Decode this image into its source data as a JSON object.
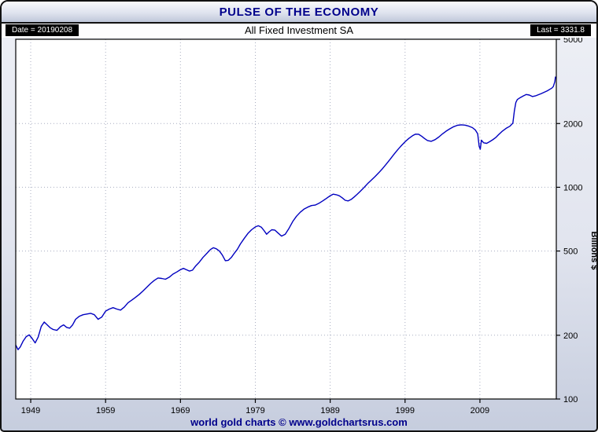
{
  "header": {
    "title": "PULSE OF THE ECONOMY"
  },
  "subheader": {
    "date_label": "Date = 20190208",
    "series_title": "All Fixed Investment SA",
    "last_label": "Last = 3331.8"
  },
  "footer": {
    "credit": "world gold charts © www.goldchartsrus.com"
  },
  "colors": {
    "line": "#0000c0",
    "title_text": "#00008b",
    "grid": "#a8adc0",
    "frame": "#000000",
    "badge_bg": "#000000",
    "badge_text": "#ffffff"
  },
  "chart_data": {
    "type": "line",
    "title": "All Fixed Investment SA",
    "date_shown": "20190208",
    "last_value": 3331.8,
    "xlabel": "",
    "ylabel": "Billions $",
    "y_scale": "log",
    "x_range": [
      1947,
      2019.2
    ],
    "y_range": [
      100,
      5000
    ],
    "x_ticks": [
      1949,
      1959,
      1969,
      1979,
      1989,
      1999,
      2009
    ],
    "y_ticks": [
      100,
      200,
      500,
      1000,
      2000,
      5000
    ],
    "grid": true,
    "legend": "none",
    "series": [
      {
        "name": "All Fixed Investment SA",
        "points": [
          [
            1947.0,
            180
          ],
          [
            1947.3,
            171
          ],
          [
            1947.6,
            176
          ],
          [
            1948.0,
            188
          ],
          [
            1948.4,
            197
          ],
          [
            1948.8,
            201
          ],
          [
            1949.2,
            193
          ],
          [
            1949.6,
            184
          ],
          [
            1950.0,
            196
          ],
          [
            1950.4,
            220
          ],
          [
            1950.8,
            231
          ],
          [
            1951.2,
            224
          ],
          [
            1951.6,
            217
          ],
          [
            1952.0,
            213
          ],
          [
            1952.5,
            211
          ],
          [
            1953.0,
            220
          ],
          [
            1953.4,
            224
          ],
          [
            1953.8,
            218
          ],
          [
            1954.2,
            216
          ],
          [
            1954.6,
            224
          ],
          [
            1955.0,
            238
          ],
          [
            1955.5,
            246
          ],
          [
            1956.0,
            250
          ],
          [
            1956.5,
            252
          ],
          [
            1957.0,
            254
          ],
          [
            1957.5,
            250
          ],
          [
            1958.0,
            238
          ],
          [
            1958.5,
            244
          ],
          [
            1959.0,
            260
          ],
          [
            1959.5,
            266
          ],
          [
            1960.0,
            270
          ],
          [
            1960.5,
            266
          ],
          [
            1961.0,
            263
          ],
          [
            1961.5,
            272
          ],
          [
            1962.0,
            285
          ],
          [
            1962.5,
            293
          ],
          [
            1963.0,
            302
          ],
          [
            1963.5,
            312
          ],
          [
            1964.0,
            324
          ],
          [
            1964.5,
            337
          ],
          [
            1965.0,
            351
          ],
          [
            1965.5,
            363
          ],
          [
            1966.0,
            373
          ],
          [
            1966.5,
            371
          ],
          [
            1967.0,
            368
          ],
          [
            1967.5,
            376
          ],
          [
            1968.0,
            389
          ],
          [
            1968.5,
            398
          ],
          [
            1969.0,
            408
          ],
          [
            1969.4,
            414
          ],
          [
            1969.8,
            408
          ],
          [
            1970.2,
            402
          ],
          [
            1970.6,
            406
          ],
          [
            1971.0,
            424
          ],
          [
            1971.5,
            442
          ],
          [
            1972.0,
            466
          ],
          [
            1972.5,
            486
          ],
          [
            1973.0,
            508
          ],
          [
            1973.4,
            518
          ],
          [
            1973.8,
            512
          ],
          [
            1974.2,
            500
          ],
          [
            1974.6,
            478
          ],
          [
            1975.0,
            450
          ],
          [
            1975.4,
            452
          ],
          [
            1975.8,
            466
          ],
          [
            1976.2,
            488
          ],
          [
            1976.6,
            510
          ],
          [
            1977.0,
            540
          ],
          [
            1977.5,
            572
          ],
          [
            1978.0,
            605
          ],
          [
            1978.5,
            630
          ],
          [
            1979.0,
            650
          ],
          [
            1979.4,
            658
          ],
          [
            1979.8,
            648
          ],
          [
            1980.2,
            622
          ],
          [
            1980.5,
            600
          ],
          [
            1980.8,
            614
          ],
          [
            1981.2,
            630
          ],
          [
            1981.6,
            628
          ],
          [
            1982.0,
            610
          ],
          [
            1982.5,
            588
          ],
          [
            1983.0,
            600
          ],
          [
            1983.5,
            640
          ],
          [
            1984.0,
            690
          ],
          [
            1984.5,
            730
          ],
          [
            1985.0,
            762
          ],
          [
            1985.5,
            788
          ],
          [
            1986.0,
            806
          ],
          [
            1986.5,
            820
          ],
          [
            1987.0,
            824
          ],
          [
            1987.5,
            840
          ],
          [
            1988.0,
            862
          ],
          [
            1988.5,
            886
          ],
          [
            1989.0,
            912
          ],
          [
            1989.4,
            928
          ],
          [
            1989.8,
            922
          ],
          [
            1990.2,
            912
          ],
          [
            1990.6,
            892
          ],
          [
            1991.0,
            868
          ],
          [
            1991.4,
            862
          ],
          [
            1991.8,
            876
          ],
          [
            1992.2,
            900
          ],
          [
            1992.6,
            926
          ],
          [
            1993.0,
            956
          ],
          [
            1993.5,
            996
          ],
          [
            1994.0,
            1040
          ],
          [
            1994.5,
            1082
          ],
          [
            1995.0,
            1124
          ],
          [
            1995.5,
            1172
          ],
          [
            1996.0,
            1226
          ],
          [
            1996.5,
            1288
          ],
          [
            1997.0,
            1356
          ],
          [
            1997.5,
            1428
          ],
          [
            1998.0,
            1502
          ],
          [
            1998.5,
            1572
          ],
          [
            1999.0,
            1640
          ],
          [
            1999.5,
            1700
          ],
          [
            2000.0,
            1752
          ],
          [
            2000.4,
            1782
          ],
          [
            2000.8,
            1780
          ],
          [
            2001.2,
            1744
          ],
          [
            2001.6,
            1700
          ],
          [
            2002.0,
            1662
          ],
          [
            2002.5,
            1648
          ],
          [
            2003.0,
            1678
          ],
          [
            2003.5,
            1726
          ],
          [
            2004.0,
            1788
          ],
          [
            2004.5,
            1842
          ],
          [
            2005.0,
            1890
          ],
          [
            2005.5,
            1932
          ],
          [
            2006.0,
            1962
          ],
          [
            2006.5,
            1972
          ],
          [
            2007.0,
            1966
          ],
          [
            2007.5,
            1944
          ],
          [
            2008.0,
            1912
          ],
          [
            2008.4,
            1862
          ],
          [
            2008.7,
            1788
          ],
          [
            2008.9,
            1560
          ],
          [
            2009.05,
            1512
          ],
          [
            2009.2,
            1668
          ],
          [
            2009.5,
            1622
          ],
          [
            2009.9,
            1612
          ],
          [
            2010.3,
            1642
          ],
          [
            2010.7,
            1676
          ],
          [
            2011.1,
            1716
          ],
          [
            2011.5,
            1772
          ],
          [
            2012.0,
            1842
          ],
          [
            2012.5,
            1898
          ],
          [
            2013.0,
            1942
          ],
          [
            2013.4,
            2008
          ],
          [
            2013.6,
            2292
          ],
          [
            2013.8,
            2516
          ],
          [
            2014.0,
            2596
          ],
          [
            2014.4,
            2652
          ],
          [
            2014.8,
            2702
          ],
          [
            2015.2,
            2742
          ],
          [
            2015.6,
            2726
          ],
          [
            2016.0,
            2682
          ],
          [
            2016.4,
            2702
          ],
          [
            2016.8,
            2736
          ],
          [
            2017.2,
            2772
          ],
          [
            2017.6,
            2812
          ],
          [
            2018.0,
            2856
          ],
          [
            2018.4,
            2912
          ],
          [
            2018.6,
            2940
          ],
          [
            2018.8,
            2990
          ],
          [
            2019.0,
            3150
          ],
          [
            2019.1,
            3331.8
          ]
        ]
      }
    ]
  }
}
